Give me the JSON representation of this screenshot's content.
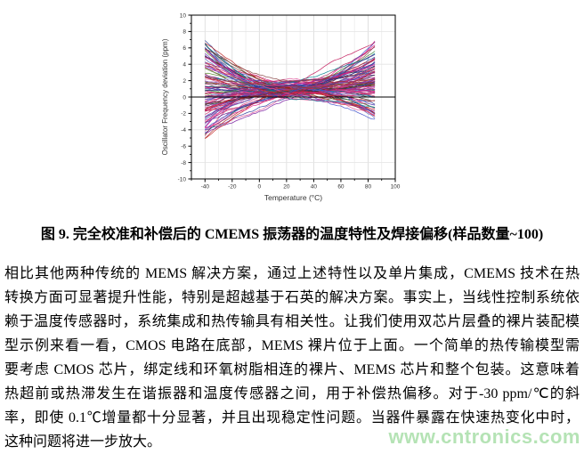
{
  "figure": {
    "chart_data": {
      "type": "line",
      "title": "",
      "xlabel": "Temperature (°C)",
      "ylabel": "Oscillator Frequency deviation (ppm)",
      "xlim": [
        -50,
        100
      ],
      "ylim": [
        -10,
        10
      ],
      "x_ticks": [
        -40,
        -20,
        0,
        20,
        40,
        60,
        80,
        100
      ],
      "x_minor_step": 10,
      "y_ticks": [
        -10,
        -8,
        -6,
        -4,
        -2,
        0,
        2,
        4,
        6,
        8,
        10
      ],
      "y_minor_step": 1,
      "h_gridlines": [
        -8,
        -4,
        4,
        8
      ],
      "zero_line": true,
      "legend": "none",
      "ensemble": {
        "description": "~100 CMEMS oscillator temperature-deviation curves after full calibration, compensation and solder shift",
        "n_curves": 105,
        "x_start": -40,
        "x_end": 85,
        "x_step": 2.5,
        "center_temp_range": [
          8,
          32
        ],
        "center_value_range": [
          -0.4,
          2.2
        ],
        "left_end_range": [
          -5.4,
          7.0
        ],
        "right_end_range": [
          -2.8,
          6.8
        ],
        "power_range": [
          1.0,
          2.1
        ],
        "noise": 0.22,
        "palette": [
          "#d4338c",
          "#c2185b",
          "#e91e8c",
          "#b03060",
          "#cc2f6e",
          "#d94f9e",
          "#aa2255",
          "#dd66aa",
          "#cc4488",
          "#993377",
          "#e0559a",
          "#c13a7d",
          "#d02a70",
          "#c62828",
          "#b71c1c",
          "#a83232",
          "#7b1fa2",
          "#8e44ad",
          "#6a3ab2",
          "#3949ab",
          "#303f9f",
          "#4455cc",
          "#2c3e90",
          "#5c6bc0",
          "#1a237e",
          "#4a148c",
          "#2e7d32",
          "#558b2f",
          "#7a7a2a",
          "#00838f",
          "#1188aa",
          "#333333",
          "#553311",
          "#bb6622",
          "#884444"
        ]
      }
    },
    "caption": "图 9. 完全校准和补偿后的 CMEMS 振荡器的温度特性及焊接偏移(样品数量~100)"
  },
  "body": {
    "lines": [
      "相比其他两种传统的 MEMS 解决方案，通过上述特性以及单片集成，CMEMS 技术在热",
      "转换方面可显著提升性能，特别是超越基于石英的解决方案。事实上，当线性控制系统依",
      "赖于温度传感器时，系统集成和热传输具有相关性。让我们使用双芯片层叠的裸片装配模",
      "型示例来看一看，CMOS 电路在底部，MEMS 裸片位于上面。一个简单的热传输模型需",
      "要考虑 CMOS 芯片，绑定线和环氧树脂相连的裸片、MEMS 芯片和整个包装。这意味着",
      "热超前或热滞发生在谐振器和温度传感器之间，用于补偿热偏移。对于-30 ppm/℃的斜",
      "率，即使 0.1℃增量都十分显著，并且出现稳定性问题。当器件暴露在快速热变化中时，",
      "这种问题将进一步放大。"
    ]
  },
  "watermark": {
    "text": "www.cntronics.com",
    "color": "#b5e3b5"
  }
}
